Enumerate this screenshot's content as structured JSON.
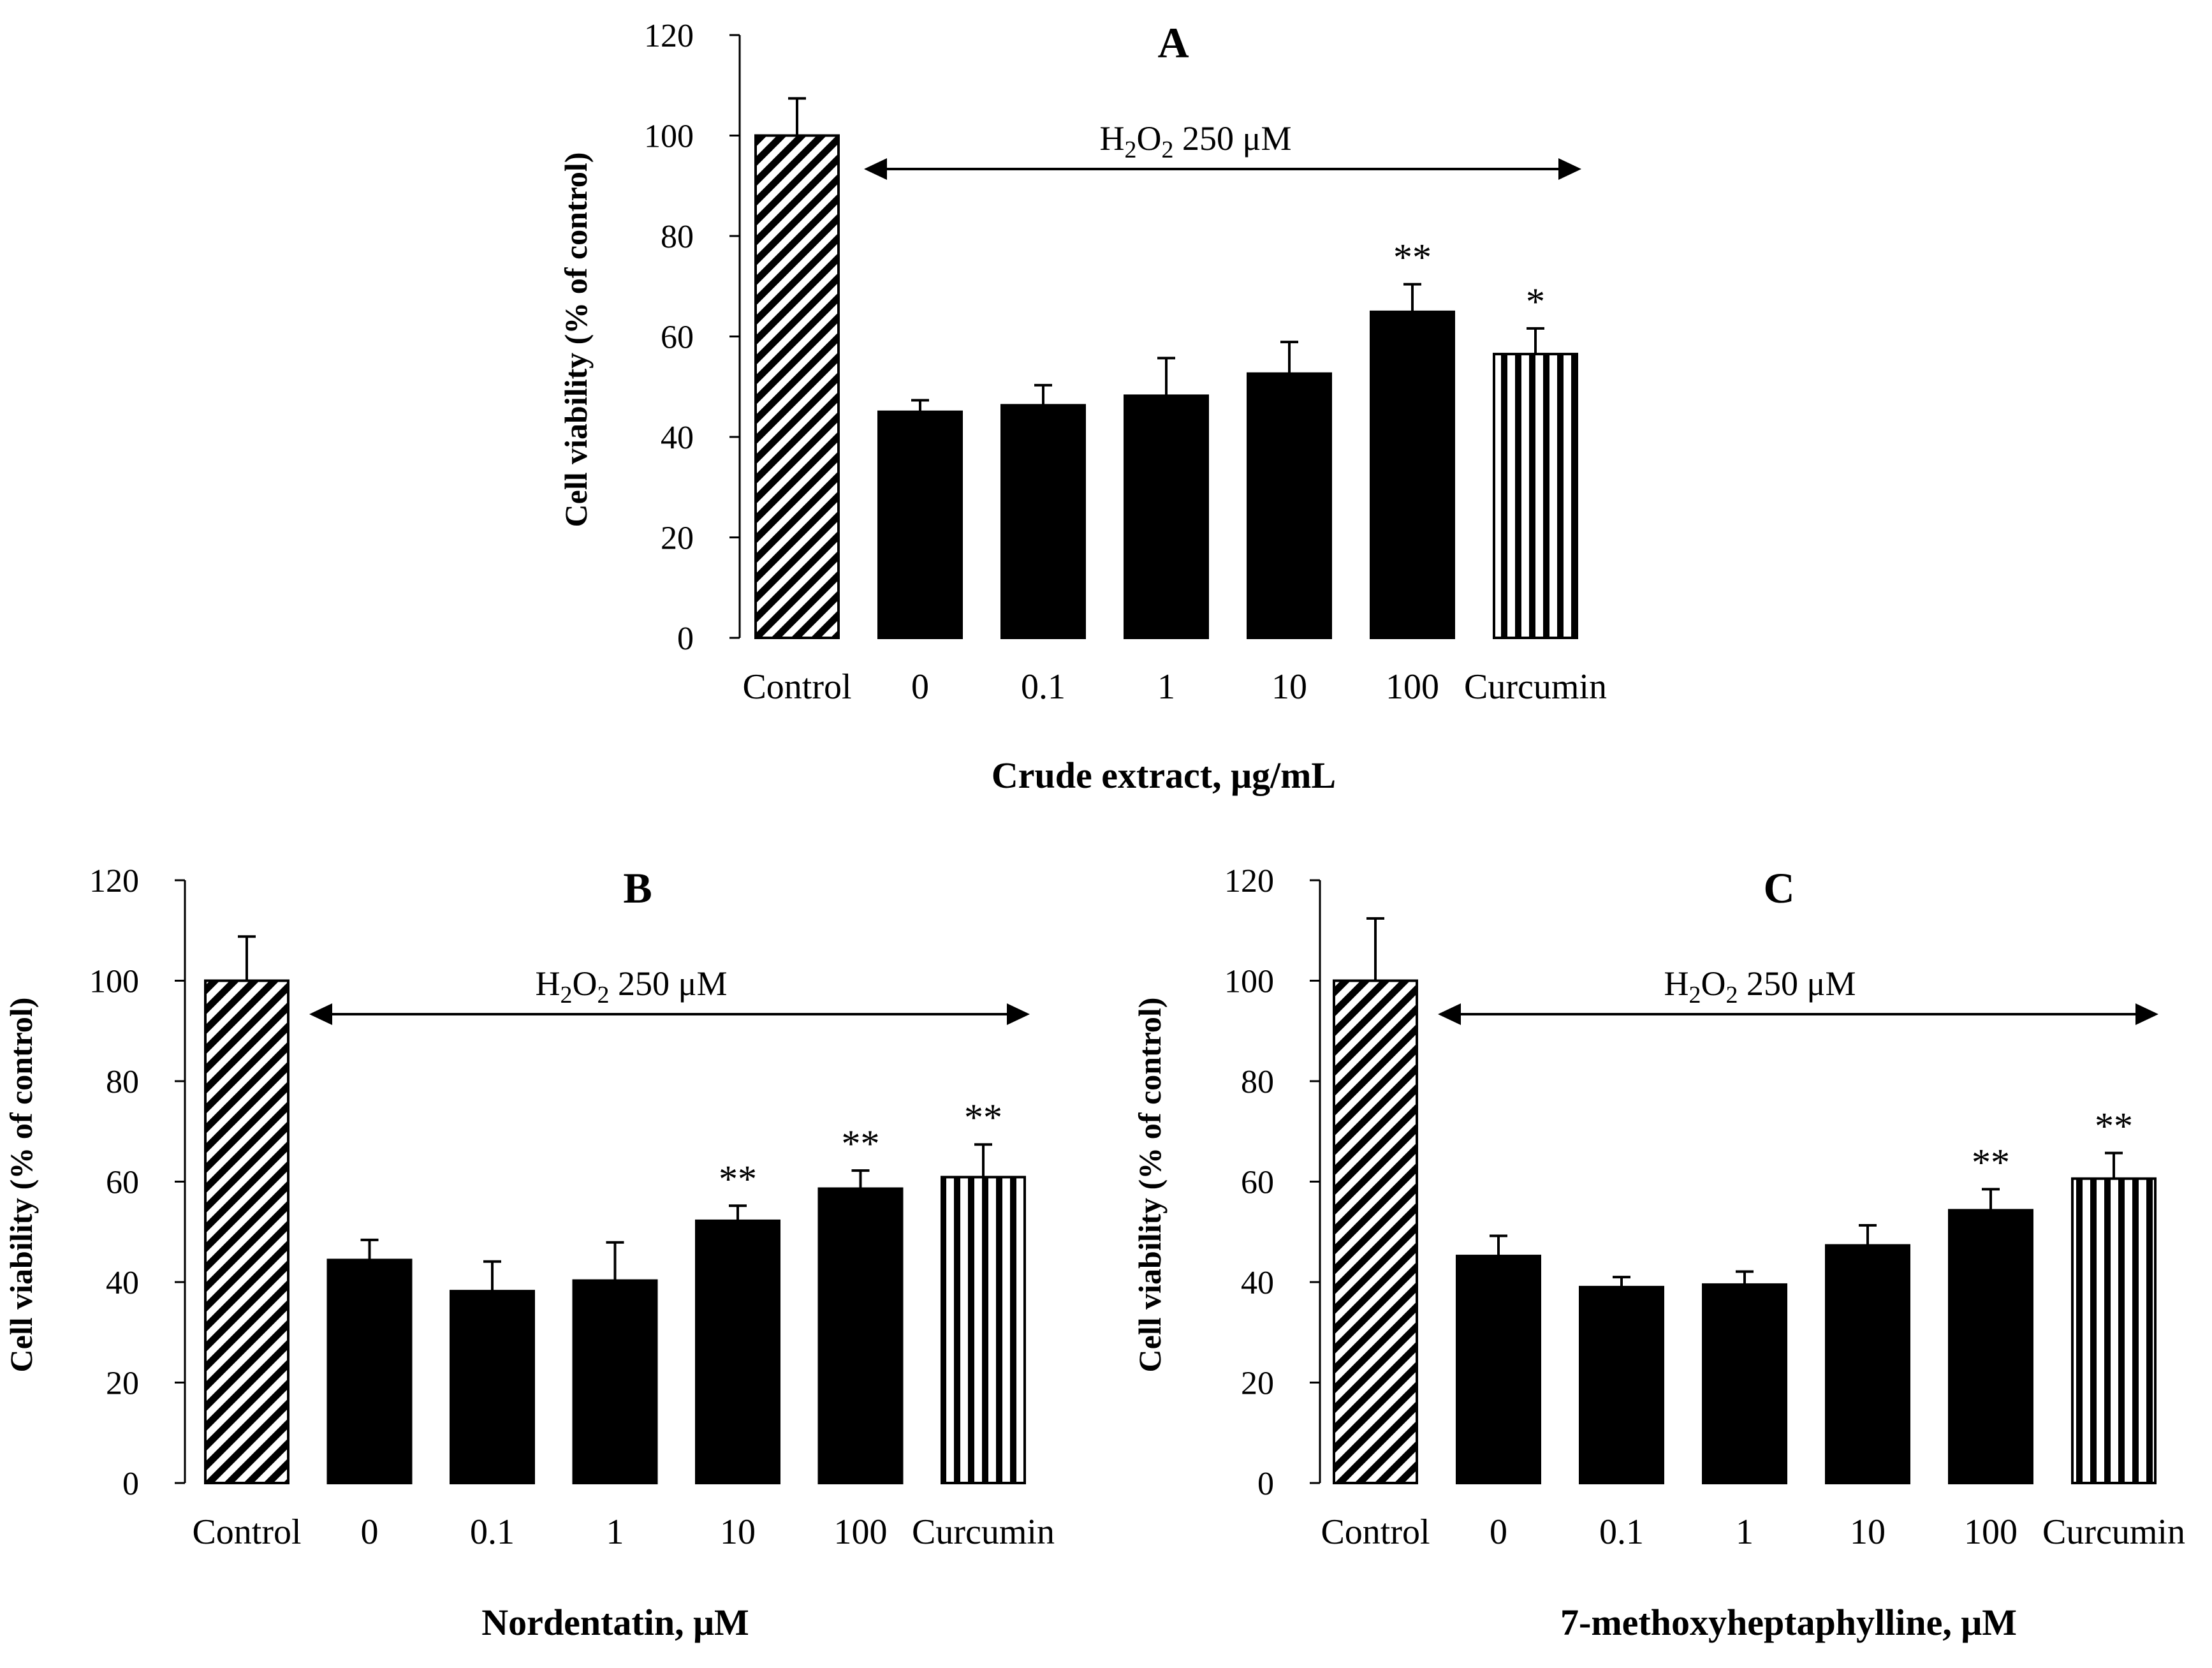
{
  "chart_data": [
    {
      "type": "bar",
      "panel": "A",
      "title": "A",
      "xlabel": "Crude extract, μg/mL",
      "ylabel": "Cell viability (% of control)",
      "ylim": [
        0,
        120
      ],
      "yticks": [
        0,
        20,
        40,
        60,
        80,
        100,
        120
      ],
      "categories": [
        "Control",
        "0",
        "0.1",
        "1",
        "10",
        "100",
        "Curcumin"
      ],
      "values": [
        100,
        45,
        46.3,
        48.2,
        52.6,
        64.9,
        56.5
      ],
      "errors": [
        7.4,
        2.3,
        4.0,
        7.5,
        6.3,
        5.5,
        5.1
      ],
      "significance": [
        "",
        "",
        "",
        "",
        "",
        "**",
        "*"
      ],
      "patterns": [
        "diagonal",
        "solid",
        "solid",
        "solid",
        "solid",
        "solid",
        "vertical"
      ],
      "annotation": {
        "prefix": "H",
        "sub1": "2",
        "mid": "O",
        "sub2": "2",
        "suffix": " 250 μM"
      }
    },
    {
      "type": "bar",
      "panel": "B",
      "title": "B",
      "xlabel": "Nordentatin, μM",
      "ylabel": "Cell viability (% of control)",
      "ylim": [
        0,
        120
      ],
      "yticks": [
        0,
        20,
        40,
        60,
        80,
        100,
        120
      ],
      "categories": [
        "Control",
        "0",
        "0.1",
        "1",
        "10",
        "100",
        "Curcumin"
      ],
      "values": [
        100,
        44.4,
        38.2,
        40.3,
        52.2,
        58.6,
        60.9
      ],
      "errors": [
        8.8,
        4.0,
        5.9,
        7.6,
        3.0,
        3.6,
        6.5
      ],
      "significance": [
        "",
        "",
        "",
        "",
        "**",
        "**",
        "**"
      ],
      "patterns": [
        "diagonal",
        "solid",
        "solid",
        "solid",
        "solid",
        "solid",
        "vertical"
      ],
      "annotation": {
        "prefix": "H",
        "sub1": "2",
        "mid": "O",
        "sub2": "2",
        "suffix": " 250 μM"
      }
    },
    {
      "type": "bar",
      "panel": "C",
      "title": "C",
      "xlabel": "7-methoxyheptaphylline, μM",
      "ylabel": "Cell viability (% of control)",
      "ylim": [
        0,
        120
      ],
      "yticks": [
        0,
        20,
        40,
        60,
        80,
        100,
        120
      ],
      "categories": [
        "Control",
        "0",
        "0.1",
        "1",
        "10",
        "100",
        "Curcumin"
      ],
      "values": [
        100,
        45.2,
        39.0,
        39.5,
        47.3,
        54.3,
        60.6
      ],
      "errors": [
        12.4,
        4.0,
        2.0,
        2.6,
        4.0,
        4.2,
        5.1
      ],
      "significance": [
        "",
        "",
        "",
        "",
        "",
        "**",
        "**"
      ],
      "patterns": [
        "diagonal",
        "solid",
        "solid",
        "solid",
        "solid",
        "solid",
        "vertical"
      ],
      "annotation": {
        "prefix": "H",
        "sub1": "2",
        "mid": "O",
        "sub2": "2",
        "suffix": " 250 μM"
      }
    }
  ]
}
